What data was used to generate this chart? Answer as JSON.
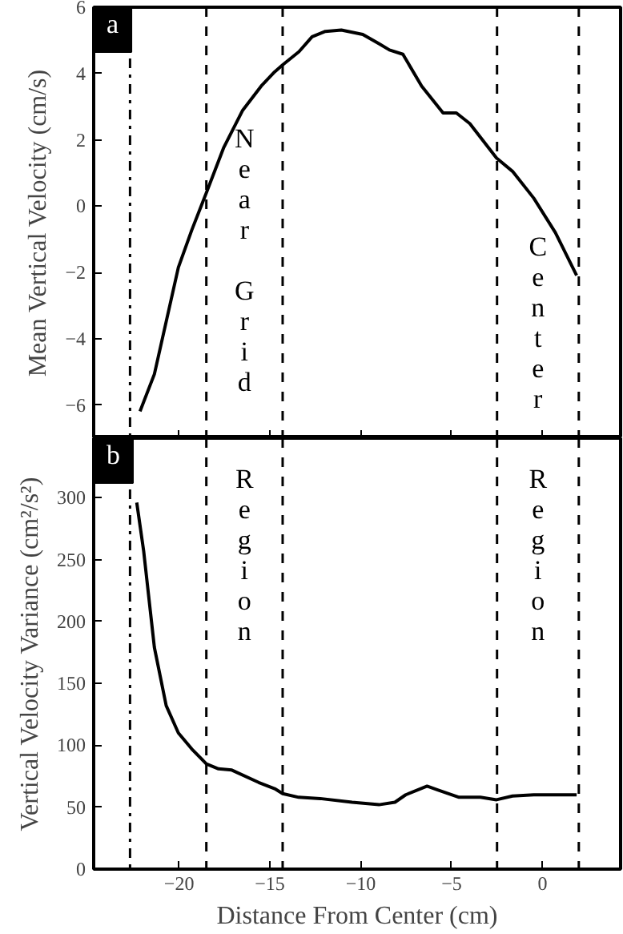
{
  "chart_data": [
    {
      "type": "line",
      "ylabel": "Mean Vertical Velocity (cm/s)",
      "xlim": [
        -24.7,
        4.3
      ],
      "ylim": [
        -7,
        6
      ],
      "xticks": [
        -20,
        -15,
        -10,
        -5,
        0
      ],
      "yticks": [
        -6,
        -4,
        -2,
        0,
        2,
        4,
        6
      ],
      "tick_labels": "y",
      "line_style": "solid",
      "annotations": [
        "a",
        "Near Grid",
        "Center"
      ],
      "ref_lines": [
        {
          "axis": "x",
          "value": -22.7,
          "color": "#000000",
          "line_style": "dashdot"
        },
        {
          "axis": "x",
          "value": -18.5,
          "color": "#000000",
          "line_style": "dashed"
        },
        {
          "axis": "x",
          "value": -14.3,
          "color": "#000000",
          "line_style": "dashed"
        },
        {
          "axis": "x",
          "value": -2.5,
          "color": "#000000",
          "line_style": "dashed"
        },
        {
          "axis": "x",
          "value": 2.0,
          "color": "#000000",
          "line_style": "dashed"
        }
      ],
      "x": [
        -22.15,
        -21.36,
        -20.04,
        -19.3,
        -18.5,
        -17.54,
        -16.5,
        -15.48,
        -14.74,
        -14.3,
        -13.4,
        -12.68,
        -11.95,
        -11.07,
        -9.89,
        -9.0,
        -8.42,
        -7.68,
        -6.65,
        -5.47,
        -4.74,
        -4.0,
        -2.53,
        -1.65,
        -0.48,
        0.71,
        1.88
      ],
      "series": [
        {
          "color": "#000000",
          "values": [
            -6.19,
            -5.07,
            -1.85,
            -0.72,
            0.4,
            1.77,
            2.89,
            3.62,
            4.05,
            4.26,
            4.66,
            5.11,
            5.27,
            5.31,
            5.18,
            4.9,
            4.71,
            4.58,
            3.62,
            2.81,
            2.81,
            2.49,
            1.45,
            1.05,
            0.24,
            -0.8,
            -2.09
          ]
        }
      ]
    },
    {
      "type": "line",
      "xlabel": "Distance From Center (cm)",
      "ylabel": "Vertical Velocity Variance (cm²/s²)",
      "xlim": [
        -24.7,
        4.3
      ],
      "ylim": [
        0,
        348
      ],
      "xticks": [
        -20,
        -15,
        -10,
        -5,
        0
      ],
      "yticks": [
        0,
        50,
        100,
        150,
        200,
        250,
        300
      ],
      "line_style": "solid",
      "annotations": [
        "b",
        "Region",
        "Region"
      ],
      "ref_lines": [
        {
          "axis": "x",
          "value": -22.7,
          "color": "#000000",
          "line_style": "dashdot"
        },
        {
          "axis": "x",
          "value": -18.5,
          "color": "#000000",
          "line_style": "dashed"
        },
        {
          "axis": "x",
          "value": -14.3,
          "color": "#000000",
          "line_style": "dashed"
        },
        {
          "axis": "x",
          "value": -2.5,
          "color": "#000000",
          "line_style": "dashed"
        },
        {
          "axis": "x",
          "value": 2.0,
          "color": "#000000",
          "line_style": "dashed"
        }
      ],
      "x": [
        -22.33,
        -21.95,
        -21.36,
        -20.71,
        -20.04,
        -19.3,
        -18.5,
        -17.83,
        -17.1,
        -15.62,
        -14.74,
        -14.3,
        -13.42,
        -12.24,
        -10.48,
        -9.0,
        -8.12,
        -7.53,
        -6.35,
        -5.77,
        -4.59,
        -3.42,
        -2.53,
        -1.65,
        -0.48,
        1.88
      ],
      "series": [
        {
          "color": "#000000",
          "values": [
            296,
            257,
            179,
            132,
            110,
            97,
            85,
            81,
            80,
            70,
            65,
            61,
            58,
            57,
            54,
            52,
            54,
            60,
            67,
            64,
            58,
            58,
            56,
            59,
            60,
            60
          ]
        }
      ]
    }
  ]
}
